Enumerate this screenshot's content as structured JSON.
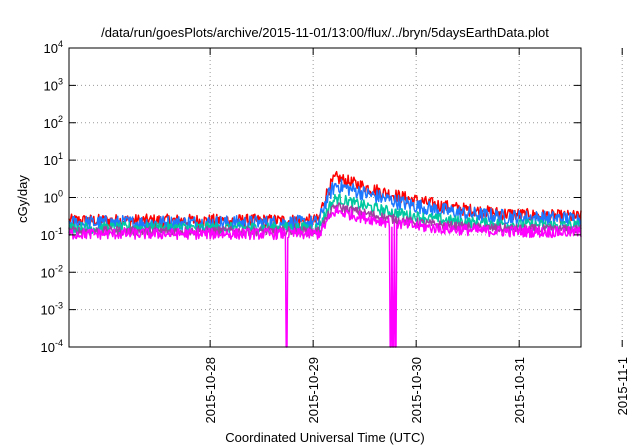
{
  "chart_data": {
    "type": "line",
    "title": "/data/run/goesPlots/archive/2015-11-01/13:00/flux/../bryn/5daysEarthData.plot",
    "xlabel": "Coordinated Universal Time (UTC)",
    "ylabel": "cGy/day",
    "y_scale": "log",
    "ylim": [
      0.0001,
      10000
    ],
    "xlim": [
      -1.37,
      3.6
    ],
    "x_origin_date": "2015-10-28",
    "x_ticks": [
      {
        "value": 0,
        "label": "2015-10-28"
      },
      {
        "value": 1,
        "label": "2015-10-29"
      },
      {
        "value": 2,
        "label": "2015-10-30"
      },
      {
        "value": 3,
        "label": "2015-10-31"
      },
      {
        "value": 4,
        "label": "2015-11-1"
      }
    ],
    "y_ticks": [
      {
        "value": 0.0001,
        "base": "10",
        "exp": "-4"
      },
      {
        "value": 0.001,
        "base": "10",
        "exp": "-3"
      },
      {
        "value": 0.01,
        "base": "10",
        "exp": "-2"
      },
      {
        "value": 0.1,
        "base": "10",
        "exp": "-1"
      },
      {
        "value": 1,
        "base": "10",
        "exp": "0"
      },
      {
        "value": 10,
        "base": "10",
        "exp": "1"
      },
      {
        "value": 100,
        "base": "10",
        "exp": "2"
      },
      {
        "value": 1000,
        "base": "10",
        "exp": "3"
      },
      {
        "value": 10000,
        "base": "10",
        "exp": "4"
      }
    ],
    "grid": true,
    "series": [
      {
        "color": "#ff0000",
        "baseline": 0.25,
        "peak": 3.5,
        "plateau": 0.3,
        "noise": 0.35
      },
      {
        "color": "#1e78ff",
        "baseline": 0.22,
        "peak": 2.3,
        "plateau": 0.27,
        "noise": 0.4
      },
      {
        "color": "#00c8a0",
        "baseline": 0.16,
        "peak": 1.0,
        "plateau": 0.18,
        "noise": 0.3
      },
      {
        "color": "#a040a0",
        "baseline": 0.13,
        "peak": 0.6,
        "plateau": 0.14,
        "noise": 0.25
      },
      {
        "color": "#ff00ff",
        "baseline": 0.11,
        "peak": 0.45,
        "plateau": 0.12,
        "noise": 0.3
      }
    ],
    "event": {
      "start": 1.05,
      "peak": 1.22,
      "decay_days": 0.45
    },
    "dropouts": [
      {
        "x": 0.74,
        "series": 4
      },
      {
        "x": 1.75,
        "series": 4
      },
      {
        "x": 1.78,
        "series": 4
      },
      {
        "x": 1.8,
        "series": 4
      }
    ]
  }
}
